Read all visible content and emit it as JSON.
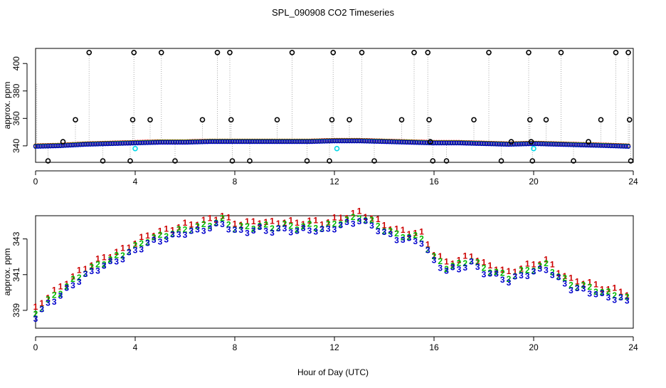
{
  "title": "SPL_090908  CO2 Timeseries",
  "xlabel": "Hour of Day (UTC)",
  "colors": {
    "outlier": "#000000",
    "connector": "#a8a8a8",
    "level1": "#cc0000",
    "level2": "#00bb00",
    "level3": "#0000cc",
    "cyan_flag": "#00d8e8"
  },
  "chart_data": [
    {
      "type": "scatter",
      "panel": "top",
      "ylabel": "approx. ppm",
      "xlim": [
        0,
        24
      ],
      "ylim": [
        328,
        411
      ],
      "x_ticks": [
        0,
        4,
        8,
        12,
        16,
        20,
        24
      ],
      "y_ticks": [
        340,
        360,
        380,
        400
      ],
      "baseline": {
        "x": [
          0,
          1,
          2,
          3,
          4,
          5,
          6,
          7,
          8,
          9,
          10,
          11,
          12,
          13,
          14,
          15,
          16,
          17,
          18,
          19,
          20,
          21,
          22,
          23,
          23.8
        ],
        "y": [
          339.5,
          340,
          341,
          341.5,
          342,
          342.5,
          342.5,
          343,
          343,
          343,
          343,
          343,
          343.5,
          343.5,
          343,
          342.5,
          342,
          342,
          341.5,
          341,
          341.5,
          341,
          340.5,
          340,
          339.5
        ]
      },
      "outliers": {
        "x": [
          0.5,
          1.1,
          1.6,
          2.15,
          2.7,
          3.8,
          3.9,
          3.95,
          4.6,
          5.05,
          5.6,
          6.7,
          7.3,
          7.8,
          7.85,
          7.9,
          8.6,
          9.7,
          10.3,
          10.9,
          11.8,
          11.9,
          11.95,
          12.6,
          13.1,
          13.6,
          14.7,
          15.2,
          15.75,
          15.8,
          15.85,
          15.95,
          16.5,
          17.6,
          18.2,
          18.7,
          19.1,
          19.8,
          19.85,
          19.9,
          19.95,
          20.5,
          21.1,
          21.6,
          22.2,
          22.7,
          23.3,
          23.8,
          23.85,
          23.9
        ],
        "y": [
          329,
          343,
          359,
          408,
          329,
          329,
          359,
          408,
          359,
          408,
          329,
          359,
          408,
          408,
          359,
          329,
          329,
          359,
          408,
          329,
          329,
          359,
          408,
          359,
          408,
          329,
          359,
          408,
          408,
          359,
          343,
          329,
          329,
          359,
          408,
          329,
          343,
          408,
          359,
          343,
          329,
          359,
          408,
          329,
          343,
          359,
          408,
          408,
          359,
          329
        ]
      },
      "cyan_flags": {
        "x": [
          4.0,
          12.1,
          20.0
        ],
        "y": [
          338,
          338,
          338
        ]
      }
    },
    {
      "type": "line",
      "panel": "bottom",
      "ylabel": "approx. ppm",
      "xlim": [
        0,
        24
      ],
      "ylim": [
        338.0,
        344.3
      ],
      "x_ticks": [
        0,
        4,
        8,
        12,
        16,
        20,
        24
      ],
      "y_ticks": [
        339,
        341,
        343
      ],
      "series": [
        {
          "name": "1",
          "label": "1",
          "offset": 0.45,
          "x": [
            0,
            0.5,
            1,
            1.5,
            2,
            2.5,
            3,
            3.5,
            4,
            4.5,
            5,
            5.5,
            6,
            6.5,
            7,
            7.5,
            8,
            8.5,
            9,
            9.5,
            10,
            10.5,
            11,
            11.5,
            12,
            12.5,
            13,
            13.5,
            14,
            14.5,
            15,
            15.5,
            16,
            16.5,
            17,
            17.5,
            18,
            18.5,
            19,
            19.5,
            20,
            20.5,
            21,
            21.5,
            22,
            22.5,
            23,
            23.5,
            23.8
          ],
          "y": [
            338.6,
            339.3,
            339.8,
            340.4,
            340.9,
            341.3,
            341.6,
            341.9,
            342.3,
            342.7,
            342.9,
            343.1,
            343.3,
            343.4,
            343.6,
            343.8,
            343.4,
            343.4,
            343.5,
            343.4,
            343.5,
            343.4,
            343.5,
            343.4,
            343.6,
            343.8,
            344.0,
            343.7,
            343.3,
            343.0,
            342.9,
            342.8,
            341.7,
            341.2,
            341.3,
            341.6,
            341.1,
            340.9,
            340.6,
            340.9,
            341.1,
            341.3,
            340.7,
            340.2,
            340.1,
            339.9,
            339.7,
            339.6,
            339.4
          ]
        },
        {
          "name": "2",
          "label": "2",
          "offset": 0.2,
          "x": [
            0,
            0.5,
            1,
            1.5,
            2,
            2.5,
            3,
            3.5,
            4,
            4.5,
            5,
            5.5,
            6,
            6.5,
            7,
            7.5,
            8,
            8.5,
            9,
            9.5,
            10,
            10.5,
            11,
            11.5,
            12,
            12.5,
            13,
            13.5,
            14,
            14.5,
            15,
            15.5,
            16,
            16.5,
            17,
            17.5,
            18,
            18.5,
            19,
            19.5,
            20,
            20.5,
            21,
            21.5,
            22,
            22.5,
            23,
            23.5,
            23.8
          ],
          "y": [
            338.6,
            339.3,
            339.8,
            340.4,
            340.9,
            341.3,
            341.6,
            341.9,
            342.3,
            342.7,
            342.9,
            343.1,
            343.3,
            343.4,
            343.6,
            343.8,
            343.4,
            343.4,
            343.5,
            343.4,
            343.5,
            343.4,
            343.5,
            343.4,
            343.6,
            343.8,
            344.0,
            343.7,
            343.3,
            343.0,
            342.9,
            342.8,
            341.7,
            341.2,
            341.3,
            341.6,
            341.1,
            340.9,
            340.6,
            340.9,
            341.1,
            341.3,
            340.7,
            340.2,
            340.1,
            339.9,
            339.7,
            339.6,
            339.4
          ]
        },
        {
          "name": "3",
          "label": "3",
          "offset": 0.0,
          "x": [
            0,
            0.5,
            1,
            1.5,
            2,
            2.5,
            3,
            3.5,
            4,
            4.5,
            5,
            5.5,
            6,
            6.5,
            7,
            7.5,
            8,
            8.5,
            9,
            9.5,
            10,
            10.5,
            11,
            11.5,
            12,
            12.5,
            13,
            13.5,
            14,
            14.5,
            15,
            15.5,
            16,
            16.5,
            17,
            17.5,
            18,
            18.5,
            19,
            19.5,
            20,
            20.5,
            21,
            21.5,
            22,
            22.5,
            23,
            23.5,
            23.8
          ],
          "y": [
            338.6,
            339.3,
            339.8,
            340.4,
            340.9,
            341.3,
            341.6,
            341.9,
            342.3,
            342.7,
            342.9,
            343.1,
            343.3,
            343.4,
            343.6,
            343.8,
            343.4,
            343.4,
            343.5,
            343.4,
            343.5,
            343.4,
            343.5,
            343.4,
            343.6,
            343.8,
            344.0,
            343.7,
            343.3,
            343.0,
            342.9,
            342.8,
            341.7,
            341.2,
            341.3,
            341.6,
            341.1,
            340.9,
            340.6,
            340.9,
            341.1,
            341.3,
            340.7,
            340.2,
            340.1,
            339.9,
            339.7,
            339.6,
            339.4
          ]
        }
      ]
    }
  ]
}
